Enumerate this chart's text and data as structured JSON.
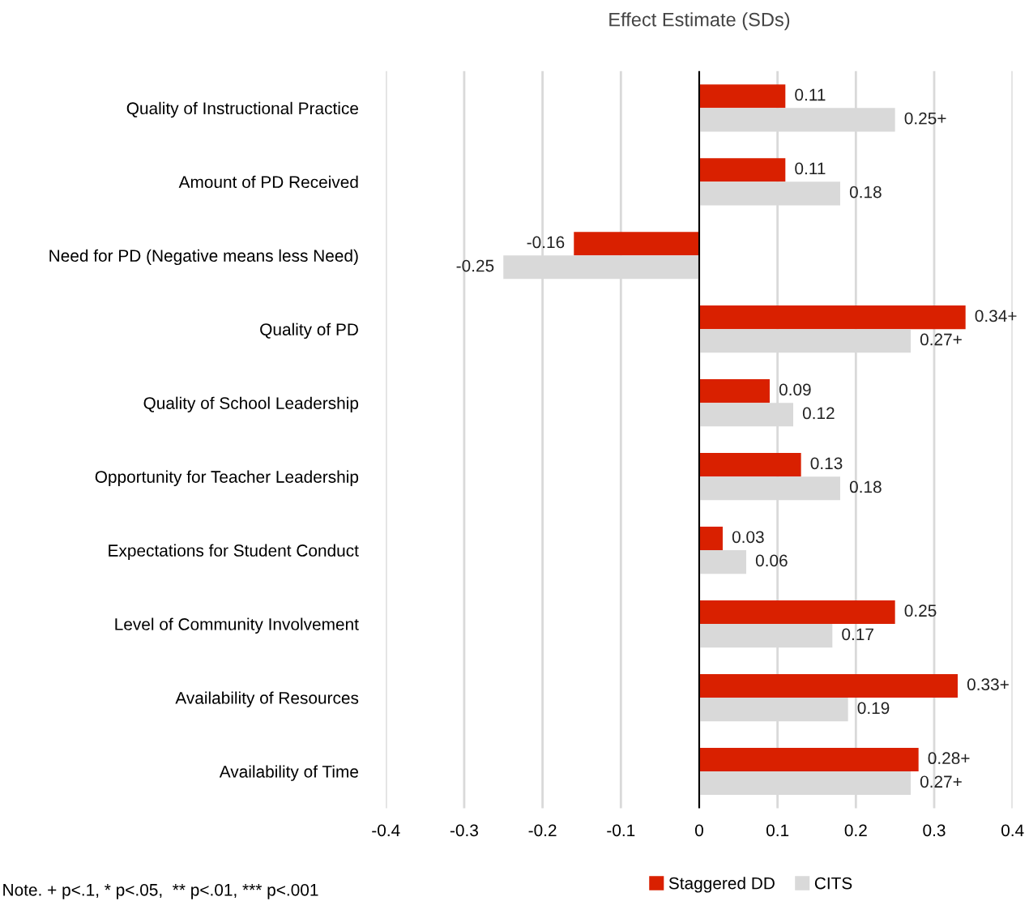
{
  "chart_data": {
    "type": "bar",
    "orientation": "horizontal",
    "title": "Effect Estimate (SDs)",
    "categories": [
      "Quality of Instructional Practice",
      "Amount of PD Received",
      "Need for PD (Negative means less Need)",
      "Quality of PD",
      "Quality of School Leadership",
      "Opportunity for Teacher Leadership",
      "Expectations for Student Conduct",
      "Level of Community Involvement",
      "Availability of Resources",
      "Availability of Time"
    ],
    "series": [
      {
        "name": "Staggered DD",
        "color": "#d92000",
        "values": [
          0.11,
          0.11,
          -0.16,
          0.34,
          0.09,
          0.13,
          0.03,
          0.25,
          0.33,
          0.28
        ],
        "value_labels": [
          "0.11",
          "0.11",
          "-0.16",
          "0.34+",
          "0.09",
          "0.13",
          "0.03",
          "0.25",
          "0.33+",
          "0.28+"
        ]
      },
      {
        "name": "CITS",
        "color": "#d9d9d9",
        "values": [
          0.25,
          0.18,
          -0.25,
          0.27,
          0.12,
          0.18,
          0.06,
          0.17,
          0.19,
          0.27
        ],
        "value_labels": [
          "0.25+",
          "0.18",
          "-0.25",
          "0.27+",
          "0.12",
          "0.18",
          "0.06",
          "0.17",
          "0.19",
          "0.27+"
        ]
      }
    ],
    "xlim": [
      -0.4,
      0.4
    ],
    "xticks": [
      -0.4,
      -0.3,
      -0.2,
      -0.1,
      0,
      0.1,
      0.2,
      0.3,
      0.4
    ],
    "grid": "x",
    "legend": "bottom",
    "annotations": [
      "Note. + p<.1, * p<.05,  ** p<.01, *** p<.001"
    ]
  }
}
